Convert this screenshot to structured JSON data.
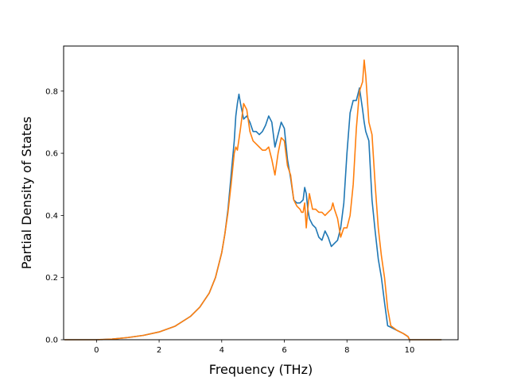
{
  "chart_data": {
    "type": "line",
    "title": "",
    "xlabel": "Frequency (THz)",
    "ylabel": "Partial Density of States",
    "xlim": [
      -1.05,
      11.55
    ],
    "ylim": [
      0.0,
      0.945
    ],
    "xticks": [
      0,
      2,
      4,
      6,
      8,
      10
    ],
    "xtick_labels": [
      "0",
      "2",
      "4",
      "6",
      "8",
      "10"
    ],
    "yticks": [
      0.0,
      0.2,
      0.4,
      0.6,
      0.8
    ],
    "ytick_labels": [
      "0.0",
      "0.2",
      "0.4",
      "0.6",
      "0.8"
    ],
    "grid": false,
    "legend": false,
    "series": [
      {
        "color": "#1f77b4",
        "x": [
          -1.0,
          0.0,
          0.5,
          1.0,
          1.5,
          2.0,
          2.5,
          3.0,
          3.3,
          3.6,
          3.8,
          4.0,
          4.1,
          4.2,
          4.3,
          4.4,
          4.45,
          4.5,
          4.55,
          4.6,
          4.7,
          4.8,
          4.9,
          5.0,
          5.1,
          5.2,
          5.3,
          5.4,
          5.5,
          5.6,
          5.7,
          5.8,
          5.9,
          6.0,
          6.1,
          6.2,
          6.3,
          6.4,
          6.5,
          6.6,
          6.65,
          6.7,
          6.75,
          6.8,
          6.9,
          7.0,
          7.1,
          7.2,
          7.3,
          7.4,
          7.5,
          7.6,
          7.7,
          7.8,
          7.9,
          8.0,
          8.1,
          8.2,
          8.3,
          8.4,
          8.5,
          8.55,
          8.6,
          8.7,
          8.8,
          8.9,
          9.0,
          9.1,
          9.2,
          9.3,
          9.4,
          9.6,
          9.8,
          9.95,
          10.0,
          10.5,
          11.0
        ],
        "y": [
          0.0,
          0.0,
          0.002,
          0.007,
          0.014,
          0.025,
          0.043,
          0.075,
          0.105,
          0.15,
          0.2,
          0.28,
          0.34,
          0.42,
          0.53,
          0.64,
          0.72,
          0.76,
          0.79,
          0.76,
          0.71,
          0.72,
          0.7,
          0.67,
          0.67,
          0.66,
          0.67,
          0.69,
          0.72,
          0.7,
          0.62,
          0.66,
          0.7,
          0.68,
          0.58,
          0.52,
          0.45,
          0.44,
          0.44,
          0.45,
          0.49,
          0.47,
          0.42,
          0.39,
          0.37,
          0.36,
          0.33,
          0.32,
          0.35,
          0.33,
          0.3,
          0.31,
          0.32,
          0.36,
          0.44,
          0.6,
          0.73,
          0.77,
          0.77,
          0.81,
          0.74,
          0.7,
          0.67,
          0.64,
          0.45,
          0.35,
          0.26,
          0.2,
          0.12,
          0.045,
          0.04,
          0.03,
          0.02,
          0.01,
          0.0,
          0.0,
          0.0
        ]
      },
      {
        "color": "#ff7f0e",
        "x": [
          -1.0,
          0.0,
          0.5,
          1.0,
          1.5,
          2.0,
          2.5,
          3.0,
          3.3,
          3.6,
          3.8,
          4.0,
          4.1,
          4.2,
          4.3,
          4.35,
          4.4,
          4.45,
          4.5,
          4.6,
          4.65,
          4.7,
          4.8,
          4.9,
          5.0,
          5.1,
          5.2,
          5.3,
          5.4,
          5.5,
          5.6,
          5.7,
          5.8,
          5.9,
          6.0,
          6.1,
          6.2,
          6.3,
          6.4,
          6.5,
          6.55,
          6.6,
          6.65,
          6.7,
          6.75,
          6.8,
          6.9,
          7.0,
          7.1,
          7.2,
          7.3,
          7.4,
          7.5,
          7.55,
          7.6,
          7.7,
          7.8,
          7.9,
          8.0,
          8.1,
          8.2,
          8.3,
          8.4,
          8.5,
          8.55,
          8.6,
          8.7,
          8.8,
          8.9,
          9.0,
          9.1,
          9.2,
          9.3,
          9.4,
          9.6,
          9.8,
          9.95,
          10.0,
          10.5,
          11.0
        ],
        "y": [
          0.0,
          0.0,
          0.002,
          0.007,
          0.014,
          0.025,
          0.043,
          0.075,
          0.105,
          0.15,
          0.2,
          0.28,
          0.34,
          0.41,
          0.5,
          0.55,
          0.6,
          0.62,
          0.61,
          0.68,
          0.72,
          0.76,
          0.74,
          0.67,
          0.64,
          0.63,
          0.62,
          0.61,
          0.61,
          0.62,
          0.58,
          0.53,
          0.6,
          0.65,
          0.64,
          0.56,
          0.53,
          0.45,
          0.43,
          0.42,
          0.41,
          0.41,
          0.44,
          0.36,
          0.42,
          0.47,
          0.42,
          0.42,
          0.41,
          0.41,
          0.4,
          0.41,
          0.42,
          0.44,
          0.42,
          0.39,
          0.33,
          0.36,
          0.36,
          0.4,
          0.5,
          0.68,
          0.8,
          0.83,
          0.9,
          0.85,
          0.7,
          0.66,
          0.5,
          0.36,
          0.27,
          0.2,
          0.1,
          0.045,
          0.03,
          0.02,
          0.01,
          0.0,
          0.0,
          0.0
        ]
      }
    ]
  }
}
